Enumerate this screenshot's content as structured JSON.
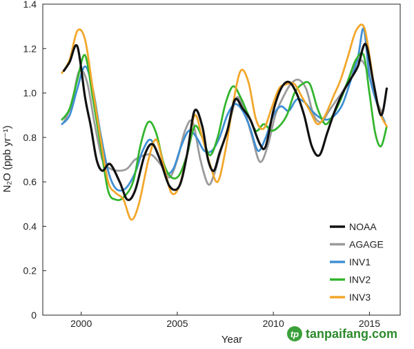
{
  "chart_data": {
    "type": "line",
    "title": "",
    "xlabel": "Year",
    "ylabel": "N₂O (ppb yr⁻¹)",
    "xlim": [
      1998.0,
      2016.6
    ],
    "ylim": [
      0,
      1.4
    ],
    "x_ticks": [
      2000,
      2005,
      2010,
      2015
    ],
    "y_ticks": [
      0,
      0.2,
      0.4,
      0.6,
      0.8,
      1.0,
      1.2,
      1.4
    ],
    "y_tick_labels": [
      "0",
      "0.2",
      "0.4",
      "0.6",
      "0.8",
      "1.0",
      "1.2",
      "1.4"
    ],
    "grid": false,
    "legend_position": "bottom-right",
    "series": [
      {
        "name": "NOAA",
        "color": "#111111",
        "x": [
          1999.1,
          1999.4,
          1999.8,
          2000.2,
          2000.5,
          2000.8,
          2001.1,
          2001.5,
          2002.0,
          2002.4,
          2002.8,
          2003.3,
          2003.7,
          2004.1,
          2004.6,
          2005.1,
          2005.5,
          2005.9,
          2006.3,
          2006.6,
          2006.9,
          2007.2,
          2007.6,
          2008.0,
          2008.4,
          2008.8,
          2009.3,
          2009.6,
          2010.0,
          2010.4,
          2010.8,
          2011.2,
          2011.6,
          2012.0,
          2012.4,
          2012.8,
          2013.2,
          2013.6,
          2014.0,
          2014.4,
          2014.8,
          2015.2,
          2015.6,
          2015.9
        ],
        "y": [
          1.1,
          1.14,
          1.21,
          0.98,
          0.85,
          0.7,
          0.65,
          0.68,
          0.6,
          0.52,
          0.56,
          0.72,
          0.77,
          0.7,
          0.58,
          0.58,
          0.72,
          0.92,
          0.85,
          0.7,
          0.65,
          0.73,
          0.83,
          0.97,
          0.93,
          0.88,
          0.77,
          0.76,
          0.92,
          1.02,
          1.05,
          1.0,
          0.9,
          0.76,
          0.72,
          0.82,
          0.92,
          1.0,
          1.06,
          1.12,
          1.22,
          1.05,
          0.9,
          1.02
        ]
      },
      {
        "name": "AGAGE",
        "color": "#9a9a9a",
        "x": [
          1999.1,
          1999.5,
          1999.9,
          2000.3,
          2000.7,
          2001.1,
          2001.5,
          2002.0,
          2002.4,
          2002.8,
          2003.3,
          2003.7,
          2004.2,
          2004.6,
          2005.0,
          2005.4,
          2005.8,
          2006.2,
          2006.6,
          2006.9,
          2007.3,
          2007.7,
          2008.1,
          2008.5,
          2008.9,
          2009.3,
          2009.7,
          2010.1,
          2010.5,
          2010.9,
          2011.3,
          2011.7,
          2012.1,
          2012.5,
          2012.9,
          2013.3,
          2013.7,
          2014.1,
          2014.5,
          2014.9,
          2015.3,
          2015.6
        ],
        "y": [
          0.87,
          0.95,
          1.1,
          1.05,
          0.86,
          0.7,
          0.66,
          0.65,
          0.66,
          0.7,
          0.72,
          0.72,
          0.67,
          0.62,
          0.7,
          0.83,
          0.87,
          0.7,
          0.59,
          0.63,
          0.75,
          0.86,
          0.98,
          0.92,
          0.8,
          0.69,
          0.76,
          0.9,
          0.98,
          1.04,
          1.06,
          1.02,
          0.9,
          0.87,
          0.92,
          0.97,
          1.02,
          1.1,
          1.15,
          1.1,
          0.98,
          0.92
        ]
      },
      {
        "name": "INV1",
        "color": "#3f8fd4",
        "x": [
          1999.0,
          1999.4,
          1999.8,
          2000.2,
          2000.6,
          2001.0,
          2001.4,
          2001.8,
          2002.3,
          2002.8,
          2003.2,
          2003.6,
          2004.0,
          2004.4,
          2004.8,
          2005.2,
          2005.6,
          2006.0,
          2006.4,
          2006.8,
          2007.2,
          2007.6,
          2008.0,
          2008.4,
          2008.8,
          2009.2,
          2009.6,
          2010.0,
          2010.4,
          2010.8,
          2011.2,
          2011.6,
          2012.0,
          2012.4,
          2012.8,
          2013.2,
          2013.6,
          2014.0,
          2014.4,
          2014.7,
          2015.0,
          2015.4,
          2015.8
        ],
        "y": [
          0.86,
          0.9,
          1.02,
          1.12,
          1.02,
          0.82,
          0.65,
          0.57,
          0.57,
          0.64,
          0.74,
          0.79,
          0.72,
          0.64,
          0.66,
          0.76,
          0.83,
          0.8,
          0.74,
          0.74,
          0.8,
          0.9,
          0.95,
          0.92,
          0.84,
          0.74,
          0.8,
          0.9,
          0.94,
          0.92,
          0.97,
          0.96,
          0.92,
          0.89,
          0.88,
          0.9,
          0.95,
          1.05,
          1.16,
          1.29,
          1.08,
          0.95,
          0.87
        ]
      },
      {
        "name": "INV2",
        "color": "#33b52e",
        "x": [
          1999.0,
          1999.4,
          1999.8,
          2000.2,
          2000.6,
          2001.0,
          2001.4,
          2001.8,
          2002.2,
          2002.7,
          2003.1,
          2003.5,
          2003.9,
          2004.3,
          2004.7,
          2005.1,
          2005.5,
          2005.9,
          2006.3,
          2006.7,
          2007.1,
          2007.5,
          2007.9,
          2008.3,
          2008.7,
          2009.1,
          2009.5,
          2009.9,
          2010.3,
          2010.7,
          2011.1,
          2011.5,
          2011.9,
          2012.3,
          2012.7,
          2013.1,
          2013.5,
          2013.9,
          2014.3,
          2014.7,
          2015.0,
          2015.3,
          2015.6,
          2015.9
        ],
        "y": [
          0.88,
          0.93,
          1.06,
          1.17,
          0.98,
          0.77,
          0.56,
          0.52,
          0.53,
          0.6,
          0.77,
          0.87,
          0.82,
          0.68,
          0.62,
          0.63,
          0.72,
          0.85,
          0.8,
          0.72,
          0.8,
          0.95,
          1.03,
          0.98,
          0.9,
          0.83,
          0.86,
          0.83,
          0.85,
          0.9,
          1.0,
          1.04,
          1.04,
          0.93,
          0.86,
          0.9,
          0.97,
          1.06,
          1.15,
          1.17,
          1.0,
          0.82,
          0.76,
          0.85
        ]
      },
      {
        "name": "INV3",
        "color": "#f2a72b",
        "x": [
          1999.0,
          1999.4,
          1999.8,
          2000.2,
          2000.6,
          2001.0,
          2001.4,
          2001.8,
          2002.2,
          2002.6,
          2003.0,
          2003.5,
          2003.9,
          2004.3,
          2004.7,
          2005.1,
          2005.5,
          2005.9,
          2006.3,
          2006.7,
          2007.1,
          2007.5,
          2007.9,
          2008.3,
          2008.7,
          2009.1,
          2009.5,
          2009.9,
          2010.3,
          2010.7,
          2011.1,
          2011.5,
          2011.9,
          2012.3,
          2012.7,
          2013.1,
          2013.5,
          2013.9,
          2014.3,
          2014.7,
          2015.0,
          2015.3,
          2015.6,
          2015.9
        ],
        "y": [
          1.09,
          1.15,
          1.28,
          1.24,
          1.02,
          0.8,
          0.6,
          0.55,
          0.52,
          0.43,
          0.5,
          0.7,
          0.79,
          0.67,
          0.55,
          0.58,
          0.72,
          0.9,
          0.8,
          0.68,
          0.6,
          0.74,
          0.95,
          1.1,
          1.05,
          0.88,
          0.84,
          0.93,
          1.02,
          1.04,
          1.04,
          0.98,
          0.92,
          0.86,
          0.9,
          0.98,
          1.06,
          1.17,
          1.28,
          1.3,
          1.17,
          1.0,
          0.9,
          0.85
        ]
      }
    ]
  },
  "watermark": {
    "text": "tanpaifang.com"
  }
}
